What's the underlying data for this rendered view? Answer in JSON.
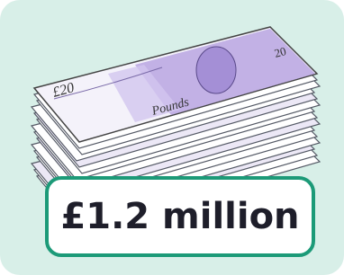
{
  "illustration": {
    "note_value": "£20",
    "note_word": "Pounds",
    "corner_value": "20"
  },
  "label": "£1.2 million"
}
